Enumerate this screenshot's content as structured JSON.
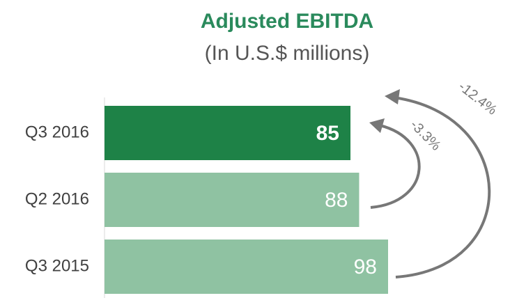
{
  "chart_data": {
    "type": "bar",
    "orientation": "horizontal",
    "title": "Adjusted EBITDA",
    "subtitle": "(In U.S.$ millions)",
    "categories": [
      "Q3 2016",
      "Q2 2016",
      "Q3 2015"
    ],
    "values": [
      85,
      88,
      98
    ],
    "colors": [
      "#1e8247",
      "#8fc2a2",
      "#8fc2a2"
    ],
    "annotations": [
      "-3.3%",
      "-12.4%"
    ]
  }
}
